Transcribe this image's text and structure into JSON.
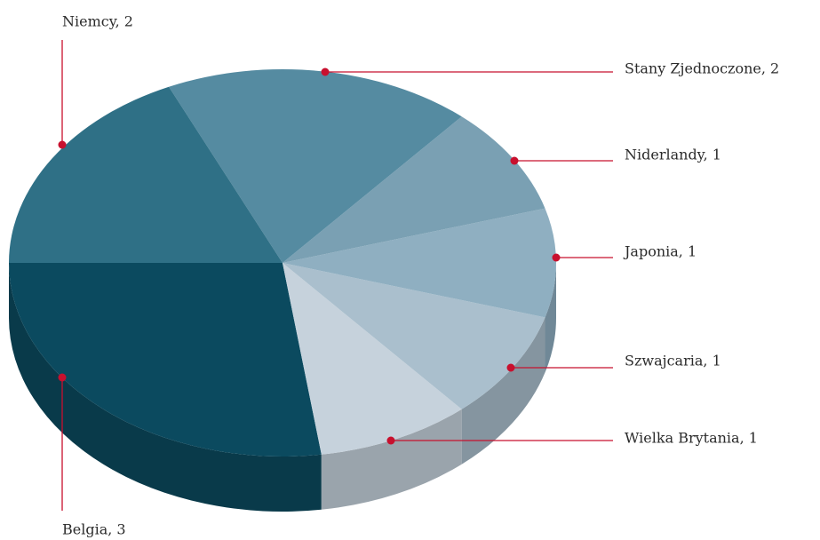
{
  "chart_data": {
    "type": "pie",
    "values": [
      3,
      1,
      1,
      1,
      1,
      2,
      2
    ],
    "value_labels": [
      "Belgia, 3",
      "Wielka Brytania, 1",
      "Szwajcaria, 1",
      "Japonia, 1",
      "Niderlandy, 1",
      "Stany Zjednoczone, 2",
      "Niemcy, 2"
    ],
    "colors": [
      "#0b4a5f",
      "#c6d2dc",
      "#aabfcd",
      "#8fafc1",
      "#7aa0b3",
      "#558ba1",
      "#2f7086"
    ]
  }
}
